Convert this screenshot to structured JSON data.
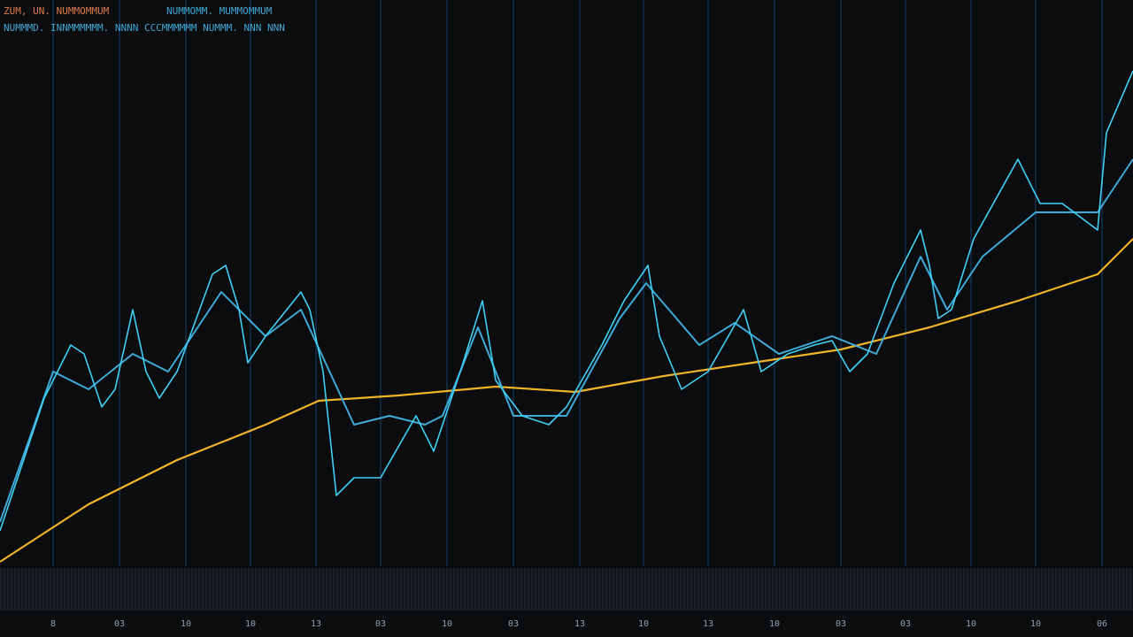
{
  "chart_data": {
    "type": "line",
    "title": "ZUM, UN. NUMMOMMUM",
    "title_right": "NUMMOMM. MUMMOMMUM",
    "subtitle": "NUMMMD. INNMMMMMM. NNNN CCCMMMMMM NUMMM. NNN NNN",
    "xlim": [
      0,
      1280
    ],
    "ylim": [
      0,
      640
    ],
    "grid": true,
    "xticks": [
      {
        "value": 60,
        "label": "8"
      },
      {
        "value": 135,
        "label": "03"
      },
      {
        "value": 210,
        "label": "10"
      },
      {
        "value": 283,
        "label": "10"
      },
      {
        "value": 357,
        "label": "13"
      },
      {
        "value": 430,
        "label": "03"
      },
      {
        "value": 505,
        "label": "10"
      },
      {
        "value": 580,
        "label": "03"
      },
      {
        "value": 655,
        "label": "13"
      },
      {
        "value": 727,
        "label": "10"
      },
      {
        "value": 800,
        "label": "13"
      },
      {
        "value": 875,
        "label": "10"
      },
      {
        "value": 950,
        "label": "03"
      },
      {
        "value": 1023,
        "label": "03"
      },
      {
        "value": 1097,
        "label": "10"
      },
      {
        "value": 1170,
        "label": "10"
      },
      {
        "value": 1245,
        "label": "06"
      }
    ],
    "series": [
      {
        "color": "#f0b429",
        "width": 2.2,
        "x": [
          0,
          100,
          200,
          300,
          360,
          450,
          560,
          650,
          750,
          850,
          950,
          1050,
          1150,
          1240,
          1280
        ],
        "values": [
          5,
          70,
          120,
          160,
          187,
          193,
          203,
          197,
          215,
          230,
          245,
          270,
          300,
          330,
          370
        ]
      },
      {
        "color": "#3fa9d8",
        "width": 2,
        "x": [
          0,
          60,
          100,
          150,
          190,
          250,
          300,
          340,
          400,
          440,
          480,
          500,
          540,
          580,
          640,
          700,
          730,
          790,
          830,
          880,
          940,
          990,
          1040,
          1070,
          1110,
          1170,
          1240,
          1280
        ],
        "values": [
          50,
          220,
          200,
          240,
          220,
          310,
          260,
          290,
          160,
          170,
          160,
          170,
          270,
          170,
          170,
          280,
          320,
          250,
          275,
          240,
          260,
          240,
          350,
          290,
          350,
          400,
          400,
          460
        ]
      },
      {
        "color": "#40d0f5",
        "width": 1.6,
        "x": [
          0,
          20,
          50,
          80,
          95,
          115,
          130,
          150,
          165,
          180,
          200,
          240,
          255,
          270,
          280,
          300,
          340,
          350,
          365,
          380,
          400,
          430,
          470,
          490,
          520,
          545,
          560,
          590,
          620,
          640,
          680,
          705,
          732,
          745,
          770,
          800,
          840,
          860,
          890,
          920,
          940,
          960,
          980,
          1010,
          1040,
          1050,
          1060,
          1075,
          1100,
          1150,
          1175,
          1200,
          1240,
          1250,
          1280
        ],
        "values": [
          40,
          100,
          190,
          250,
          240,
          180,
          200,
          290,
          220,
          190,
          220,
          330,
          340,
          290,
          230,
          260,
          310,
          290,
          220,
          80,
          100,
          100,
          170,
          130,
          220,
          300,
          210,
          170,
          160,
          180,
          250,
          300,
          340,
          260,
          200,
          220,
          290,
          220,
          240,
          250,
          255,
          220,
          240,
          320,
          380,
          340,
          280,
          290,
          370,
          460,
          410,
          410,
          380,
          490,
          560
        ]
      }
    ]
  }
}
